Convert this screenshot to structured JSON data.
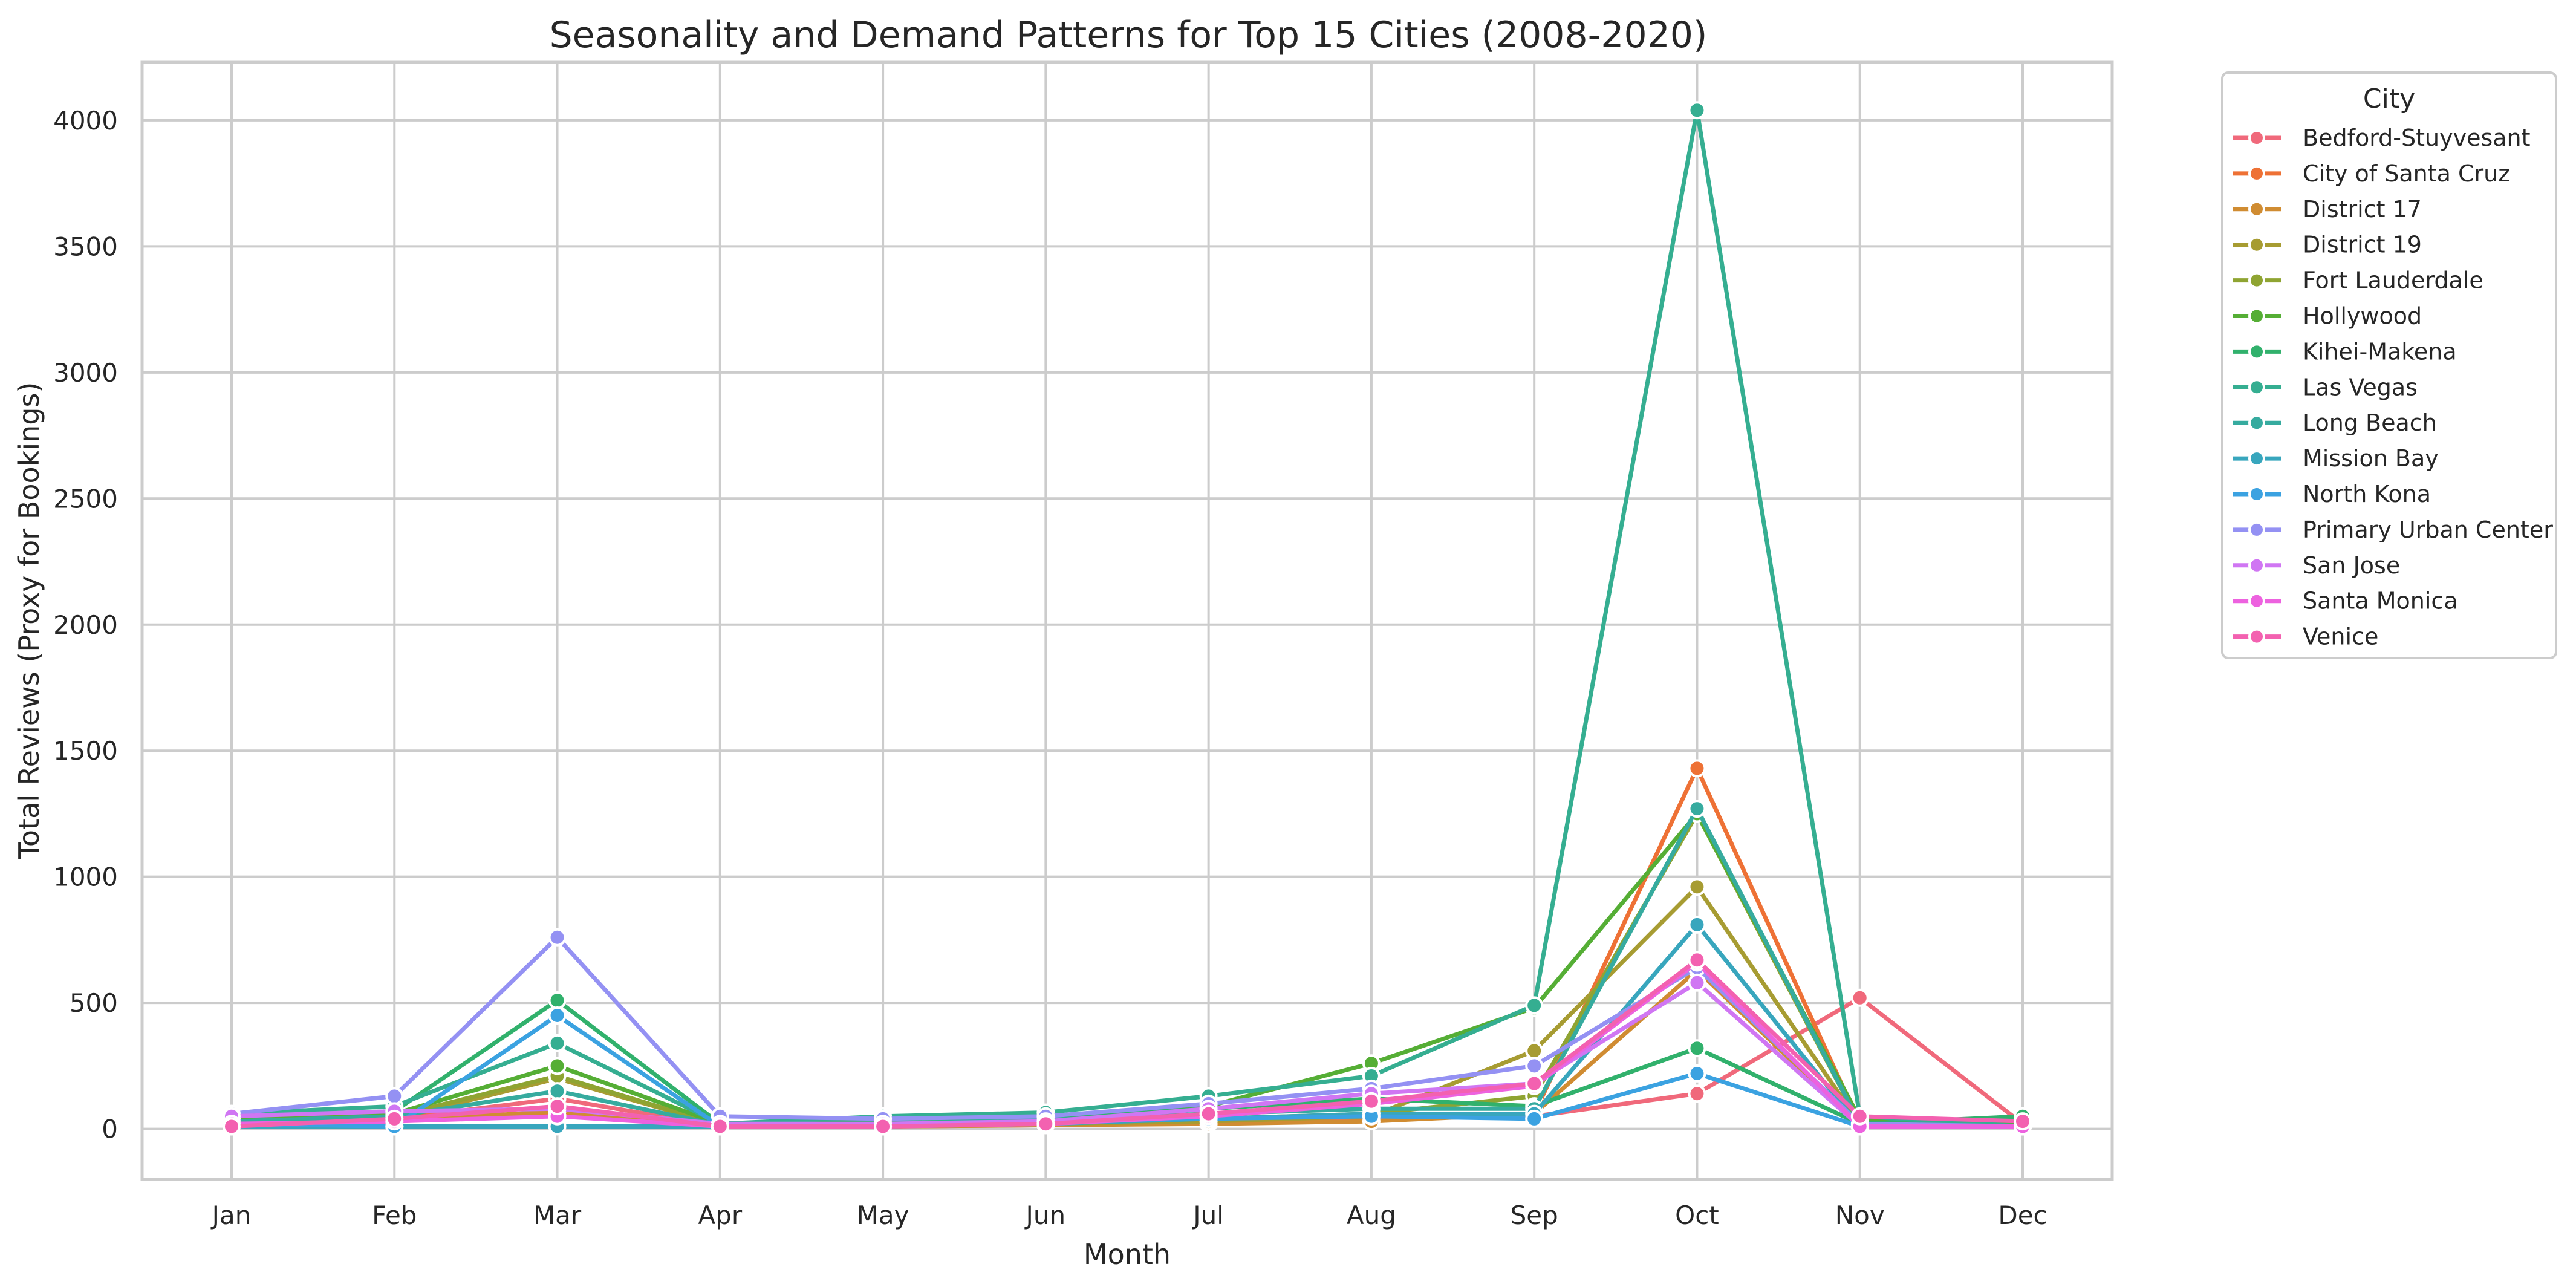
{
  "chart_data": {
    "type": "line",
    "title": "Seasonality and Demand Patterns for Top 15 Cities (2008-2020)",
    "xlabel": "Month",
    "ylabel": "Total Reviews (Proxy for Bookings)",
    "categories": [
      "Jan",
      "Feb",
      "Mar",
      "Apr",
      "May",
      "Jun",
      "Jul",
      "Aug",
      "Sep",
      "Oct",
      "Nov",
      "Dec"
    ],
    "ylim": [
      -200,
      4230
    ],
    "yticks": [
      0,
      500,
      1000,
      1500,
      2000,
      2500,
      3000,
      3500,
      4000
    ],
    "grid": true,
    "legend": {
      "title": "City",
      "placement": "outside-top-right"
    },
    "series": [
      {
        "name": "Bedford-Stuyvesant",
        "color": "#f0697b",
        "values": [
          20,
          40,
          120,
          10,
          10,
          15,
          30,
          40,
          50,
          140,
          520,
          20
        ]
      },
      {
        "name": "City of Santa Cruz",
        "color": "#ee7135",
        "values": [
          10,
          50,
          60,
          10,
          10,
          20,
          30,
          60,
          60,
          1430,
          20,
          10
        ]
      },
      {
        "name": "District 17",
        "color": "#d08c32",
        "values": [
          15,
          30,
          70,
          10,
          10,
          15,
          20,
          30,
          60,
          630,
          10,
          10
        ]
      },
      {
        "name": "District 19",
        "color": "#a79c32",
        "values": [
          20,
          40,
          200,
          15,
          10,
          20,
          30,
          50,
          310,
          960,
          20,
          10
        ]
      },
      {
        "name": "Fort Lauderdale",
        "color": "#8fa432",
        "values": [
          30,
          50,
          210,
          15,
          15,
          25,
          40,
          60,
          130,
          1250,
          20,
          10
        ]
      },
      {
        "name": "Hollywood",
        "color": "#55ae35",
        "values": [
          40,
          60,
          250,
          20,
          25,
          40,
          90,
          260,
          480,
          1250,
          40,
          20
        ]
      },
      {
        "name": "Kihei-Makena",
        "color": "#31b16c",
        "values": [
          50,
          70,
          510,
          20,
          30,
          45,
          80,
          120,
          90,
          320,
          20,
          50
        ]
      },
      {
        "name": "Las Vegas",
        "color": "#35ae91",
        "values": [
          60,
          90,
          340,
          20,
          50,
          65,
          130,
          210,
          490,
          4040,
          50,
          10
        ]
      },
      {
        "name": "Long Beach",
        "color": "#36ab9f",
        "values": [
          30,
          50,
          150,
          15,
          20,
          35,
          60,
          80,
          80,
          1270,
          20,
          10
        ]
      },
      {
        "name": "Mission Bay",
        "color": "#38a6bd",
        "values": [
          10,
          10,
          10,
          10,
          10,
          20,
          40,
          60,
          60,
          810,
          10,
          10
        ]
      },
      {
        "name": "North Kona",
        "color": "#3ba2e1",
        "values": [
          20,
          10,
          450,
          10,
          15,
          30,
          40,
          50,
          40,
          220,
          10,
          10
        ]
      },
      {
        "name": "Primary Urban Center",
        "color": "#9491f3",
        "values": [
          60,
          130,
          760,
          50,
          40,
          50,
          100,
          160,
          250,
          640,
          20,
          10
        ]
      },
      {
        "name": "San Jose",
        "color": "#d076f3",
        "values": [
          50,
          70,
          80,
          20,
          20,
          30,
          80,
          140,
          180,
          580,
          10,
          10
        ]
      },
      {
        "name": "Santa Monica",
        "color": "#ed62df",
        "values": [
          20,
          30,
          50,
          10,
          10,
          20,
          50,
          100,
          170,
          660,
          10,
          10
        ]
      },
      {
        "name": "Venice",
        "color": "#f361b0",
        "values": [
          10,
          40,
          90,
          10,
          10,
          20,
          60,
          110,
          180,
          670,
          50,
          30
        ]
      }
    ]
  }
}
